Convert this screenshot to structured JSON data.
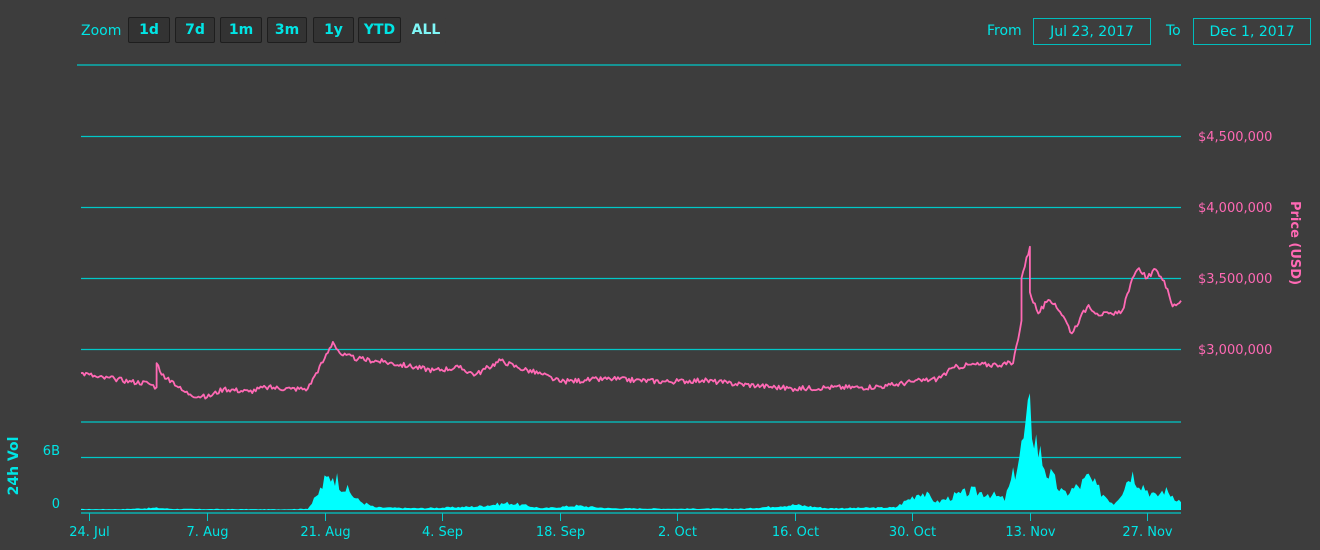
{
  "toolbar": {
    "zoom_label": "Zoom",
    "zoom_buttons": [
      "1d",
      "7d",
      "1m",
      "3m",
      "1y",
      "YTD",
      "ALL"
    ],
    "active_zoom": "ALL",
    "from_label": "From",
    "from_value": "Jul 23, 2017",
    "to_label": "To",
    "to_value": "Dec 1, 2017"
  },
  "colors": {
    "price_line": "#ff69b4",
    "volume_fill": "#00ffff",
    "grid": "#00c8c8",
    "accent": "#00e5e5"
  },
  "chart_data": {
    "type": "line",
    "x_range": [
      "2017-07-23",
      "2017-12-01"
    ],
    "x_ticks": [
      {
        "date": "2017-07-24",
        "label": "24. Jul"
      },
      {
        "date": "2017-08-07",
        "label": "7. Aug"
      },
      {
        "date": "2017-08-21",
        "label": "21. Aug"
      },
      {
        "date": "2017-09-04",
        "label": "4. Sep"
      },
      {
        "date": "2017-09-18",
        "label": "18. Sep"
      },
      {
        "date": "2017-10-02",
        "label": "2. Oct"
      },
      {
        "date": "2017-10-16",
        "label": "16. Oct"
      },
      {
        "date": "2017-10-30",
        "label": "30. Oct"
      },
      {
        "date": "2017-11-13",
        "label": "13. Nov"
      },
      {
        "date": "2017-11-27",
        "label": "27. Nov"
      }
    ],
    "price": {
      "axis_title": "Price (USD)",
      "ylim": [
        2500000,
        5000000
      ],
      "ticks": [
        {
          "value": 3000000,
          "label": "$3,000,000"
        },
        {
          "value": 3500000,
          "label": "$3,500,000"
        },
        {
          "value": 4000000,
          "label": "$4,000,000"
        },
        {
          "value": 4500000,
          "label": "$4,500,000"
        }
      ],
      "points": [
        [
          "2017-07-23",
          2830000
        ],
        [
          "2017-07-24",
          2820000
        ],
        [
          "2017-07-25",
          2800000
        ],
        [
          "2017-07-27",
          2790000
        ],
        [
          "2017-07-29",
          2770000
        ],
        [
          "2017-07-31",
          2760000
        ],
        [
          "2017-08-01",
          2730000
        ],
        [
          "2017-08-01",
          2900000
        ],
        [
          "2017-08-02",
          2790000
        ],
        [
          "2017-08-03",
          2770000
        ],
        [
          "2017-08-04",
          2710000
        ],
        [
          "2017-08-05",
          2680000
        ],
        [
          "2017-08-07",
          2660000
        ],
        [
          "2017-08-09",
          2720000
        ],
        [
          "2017-08-12",
          2700000
        ],
        [
          "2017-08-14",
          2730000
        ],
        [
          "2017-08-17",
          2720000
        ],
        [
          "2017-08-19",
          2720000
        ],
        [
          "2017-08-20",
          2830000
        ],
        [
          "2017-08-21",
          2930000
        ],
        [
          "2017-08-22",
          3050000
        ],
        [
          "2017-08-23",
          2960000
        ],
        [
          "2017-08-25",
          2930000
        ],
        [
          "2017-08-28",
          2910000
        ],
        [
          "2017-08-31",
          2880000
        ],
        [
          "2017-09-03",
          2850000
        ],
        [
          "2017-09-06",
          2870000
        ],
        [
          "2017-09-08",
          2820000
        ],
        [
          "2017-09-11",
          2920000
        ],
        [
          "2017-09-13",
          2870000
        ],
        [
          "2017-09-16",
          2820000
        ],
        [
          "2017-09-18",
          2770000
        ],
        [
          "2017-09-21",
          2780000
        ],
        [
          "2017-09-24",
          2790000
        ],
        [
          "2017-09-27",
          2780000
        ],
        [
          "2017-10-01",
          2770000
        ],
        [
          "2017-10-05",
          2780000
        ],
        [
          "2017-10-08",
          2760000
        ],
        [
          "2017-10-12",
          2740000
        ],
        [
          "2017-10-16",
          2720000
        ],
        [
          "2017-10-20",
          2730000
        ],
        [
          "2017-10-24",
          2730000
        ],
        [
          "2017-10-27",
          2740000
        ],
        [
          "2017-10-30",
          2770000
        ],
        [
          "2017-11-02",
          2790000
        ],
        [
          "2017-11-04",
          2870000
        ],
        [
          "2017-11-06",
          2890000
        ],
        [
          "2017-11-09",
          2890000
        ],
        [
          "2017-11-11",
          2900000
        ],
        [
          "2017-11-12",
          3200000
        ],
        [
          "2017-11-12",
          3500000
        ],
        [
          "2017-11-13",
          3720000
        ],
        [
          "2017-11-13",
          3400000
        ],
        [
          "2017-11-14",
          3250000
        ],
        [
          "2017-11-15",
          3330000
        ],
        [
          "2017-11-16",
          3320000
        ],
        [
          "2017-11-17",
          3230000
        ],
        [
          "2017-11-18",
          3110000
        ],
        [
          "2017-11-19",
          3220000
        ],
        [
          "2017-11-20",
          3310000
        ],
        [
          "2017-11-21",
          3250000
        ],
        [
          "2017-11-23",
          3240000
        ],
        [
          "2017-11-24",
          3270000
        ],
        [
          "2017-11-25",
          3460000
        ],
        [
          "2017-11-26",
          3570000
        ],
        [
          "2017-11-27",
          3500000
        ],
        [
          "2017-11-28",
          3560000
        ],
        [
          "2017-11-29",
          3480000
        ],
        [
          "2017-11-30",
          3300000
        ],
        [
          "2017-12-01",
          3340000
        ]
      ]
    },
    "volume": {
      "axis_title": "24h Vol",
      "ylim": [
        0,
        10000000000
      ],
      "ticks": [
        {
          "value": 0,
          "label": "0"
        },
        {
          "value": 6000000000,
          "label": "6B"
        }
      ],
      "points": [
        [
          "2017-07-23",
          100000000
        ],
        [
          "2017-07-28",
          100000000
        ],
        [
          "2017-08-01",
          250000000
        ],
        [
          "2017-08-03",
          120000000
        ],
        [
          "2017-08-10",
          100000000
        ],
        [
          "2017-08-16",
          80000000
        ],
        [
          "2017-08-19",
          150000000
        ],
        [
          "2017-08-20",
          1400000000
        ],
        [
          "2017-08-21",
          3200000000
        ],
        [
          "2017-08-22",
          4100000000
        ],
        [
          "2017-08-23",
          2900000000
        ],
        [
          "2017-08-25",
          1100000000
        ],
        [
          "2017-08-27",
          300000000
        ],
        [
          "2017-09-01",
          200000000
        ],
        [
          "2017-09-05",
          300000000
        ],
        [
          "2017-09-08",
          400000000
        ],
        [
          "2017-09-12",
          800000000
        ],
        [
          "2017-09-14",
          500000000
        ],
        [
          "2017-09-16",
          200000000
        ],
        [
          "2017-09-20",
          500000000
        ],
        [
          "2017-09-24",
          200000000
        ],
        [
          "2017-10-02",
          150000000
        ],
        [
          "2017-10-10",
          150000000
        ],
        [
          "2017-10-16",
          600000000
        ],
        [
          "2017-10-20",
          200000000
        ],
        [
          "2017-10-28",
          300000000
        ],
        [
          "2017-10-30",
          1500000000
        ],
        [
          "2017-10-31",
          2100000000
        ],
        [
          "2017-11-02",
          900000000
        ],
        [
          "2017-11-04",
          1600000000
        ],
        [
          "2017-11-06",
          2100000000
        ],
        [
          "2017-11-08",
          1900000000
        ],
        [
          "2017-11-10",
          1200000000
        ],
        [
          "2017-11-11",
          3800000000
        ],
        [
          "2017-11-12",
          7000000000
        ],
        [
          "2017-11-13",
          11000000000
        ],
        [
          "2017-11-14",
          7000000000
        ],
        [
          "2017-11-15",
          4500000000
        ],
        [
          "2017-11-17",
          1800000000
        ],
        [
          "2017-11-19",
          2800000000
        ],
        [
          "2017-11-20",
          3700000000
        ],
        [
          "2017-11-21",
          2500000000
        ],
        [
          "2017-11-23",
          700000000
        ],
        [
          "2017-11-24",
          2200000000
        ],
        [
          "2017-11-25",
          4300000000
        ],
        [
          "2017-11-26",
          3300000000
        ],
        [
          "2017-11-27",
          2300000000
        ],
        [
          "2017-11-28",
          1500000000
        ],
        [
          "2017-11-29",
          2300000000
        ],
        [
          "2017-11-30",
          1700000000
        ],
        [
          "2017-12-01",
          900000000
        ]
      ]
    }
  }
}
